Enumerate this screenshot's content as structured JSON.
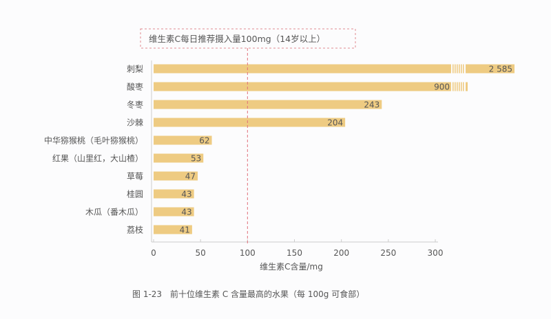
{
  "chart_data": {
    "type": "bar",
    "orientation": "horizontal",
    "categories": [
      "刺梨",
      "酸枣",
      "冬枣",
      "沙棘",
      "中华猕猴桃（毛叶猕猴桃）",
      "红果（山里红，大山楂）",
      "草莓",
      "桂圆",
      "木瓜（番木瓜）",
      "荔枝"
    ],
    "values": [
      2585,
      900,
      243,
      204,
      62,
      53,
      47,
      43,
      43,
      41
    ],
    "value_labels": [
      "2 585",
      "900",
      "243",
      "204",
      "62",
      "53",
      "47",
      "43",
      "43",
      "41"
    ],
    "xlabel": "维生素C含量/mg",
    "xlim": [
      0,
      300
    ],
    "xticks": [
      0,
      50,
      100,
      150,
      200,
      250,
      300
    ],
    "broken_axis_bars": [
      "刺梨",
      "酸枣"
    ],
    "reference_line": {
      "value": 100,
      "label": "维生素C每日推荐摄入量100mg（14岁以上）",
      "color": "#e0707a"
    },
    "bar_color": "#eecb82",
    "grid": false,
    "caption": "图 1-23　前十位维生素 C 含量最高的水果（每 100g 可食部）"
  }
}
